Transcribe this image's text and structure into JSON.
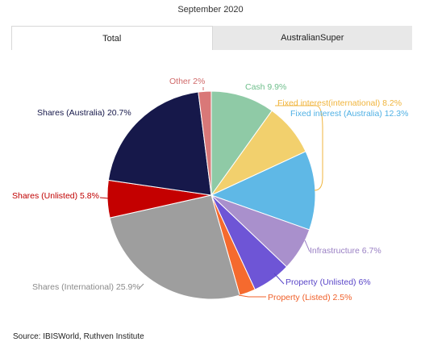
{
  "subtitle": "September 2020",
  "tabs": [
    {
      "label": "Total",
      "active": true
    },
    {
      "label": "AustralianSuper",
      "active": false
    }
  ],
  "source": "Source: IBISWorld, Ruthven Institute",
  "chart_data": {
    "type": "pie",
    "categories": [
      "Cash",
      "Fixed interest(international)",
      "Fixed interest (Australia)",
      "Infrastructure",
      "Property (Unlisted)",
      "Property (Listed)",
      "Shares (International)",
      "Shares (Unlisted)",
      "Shares (Australia)",
      "Other"
    ],
    "values": [
      9.9,
      8.2,
      12.3,
      6.7,
      6,
      2.5,
      25.9,
      5.8,
      20.7,
      2
    ],
    "labels": [
      "Cash 9.9%",
      "Fixed interest(international) 8.2%",
      "Fixed interest (Australia) 12.3%",
      "Infrastructure 6.7%",
      "Property (Unlisted) 6%",
      "Property (Listed) 2.5%",
      "Shares (International) 25.9%",
      "Shares (Unlisted) 5.8%",
      "Shares (Australia) 20.7%",
      "Other 2%"
    ],
    "colors": [
      "#8fcaa6",
      "#f2d06d",
      "#5fb8e6",
      "#a990cc",
      "#6e55d6",
      "#f56a2e",
      "#9e9e9e",
      "#c40000",
      "#16184a",
      "#d97878"
    ],
    "label_colors": [
      "#6fbf8c",
      "#f0b43c",
      "#4fb0e4",
      "#9a80c4",
      "#5a46c8",
      "#f0602a",
      "#8a8a8a",
      "#c00000",
      "#16184a",
      "#d06a6a"
    ],
    "start_angle_deg": 0,
    "direction": "clockwise"
  }
}
